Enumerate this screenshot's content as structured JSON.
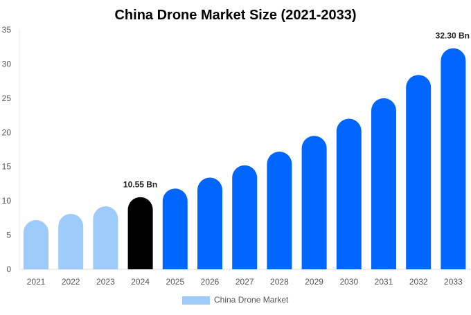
{
  "chart_data": {
    "type": "bar",
    "title": "China Drone Market Size (2021-2033)",
    "categories": [
      "2021",
      "2022",
      "2023",
      "2024",
      "2025",
      "2026",
      "2027",
      "2028",
      "2029",
      "2030",
      "2031",
      "2032",
      "2033"
    ],
    "series": [
      {
        "name": "China Drone Market",
        "values": [
          7.2,
          8.1,
          9.2,
          10.55,
          11.8,
          13.4,
          15.2,
          17.2,
          19.5,
          22.0,
          25.0,
          28.4,
          32.3
        ]
      }
    ],
    "data_labels": {
      "3": "10.55 Bn",
      "12": "32.30 Bn"
    },
    "ylim": [
      0,
      35
    ],
    "yticks": [
      0,
      5,
      10,
      15,
      20,
      25,
      30,
      35
    ],
    "grid": false,
    "legend": "bottom",
    "colors": {
      "historical": "#9fcbfb",
      "current": "#000000",
      "forecast": "#0066ff"
    }
  }
}
